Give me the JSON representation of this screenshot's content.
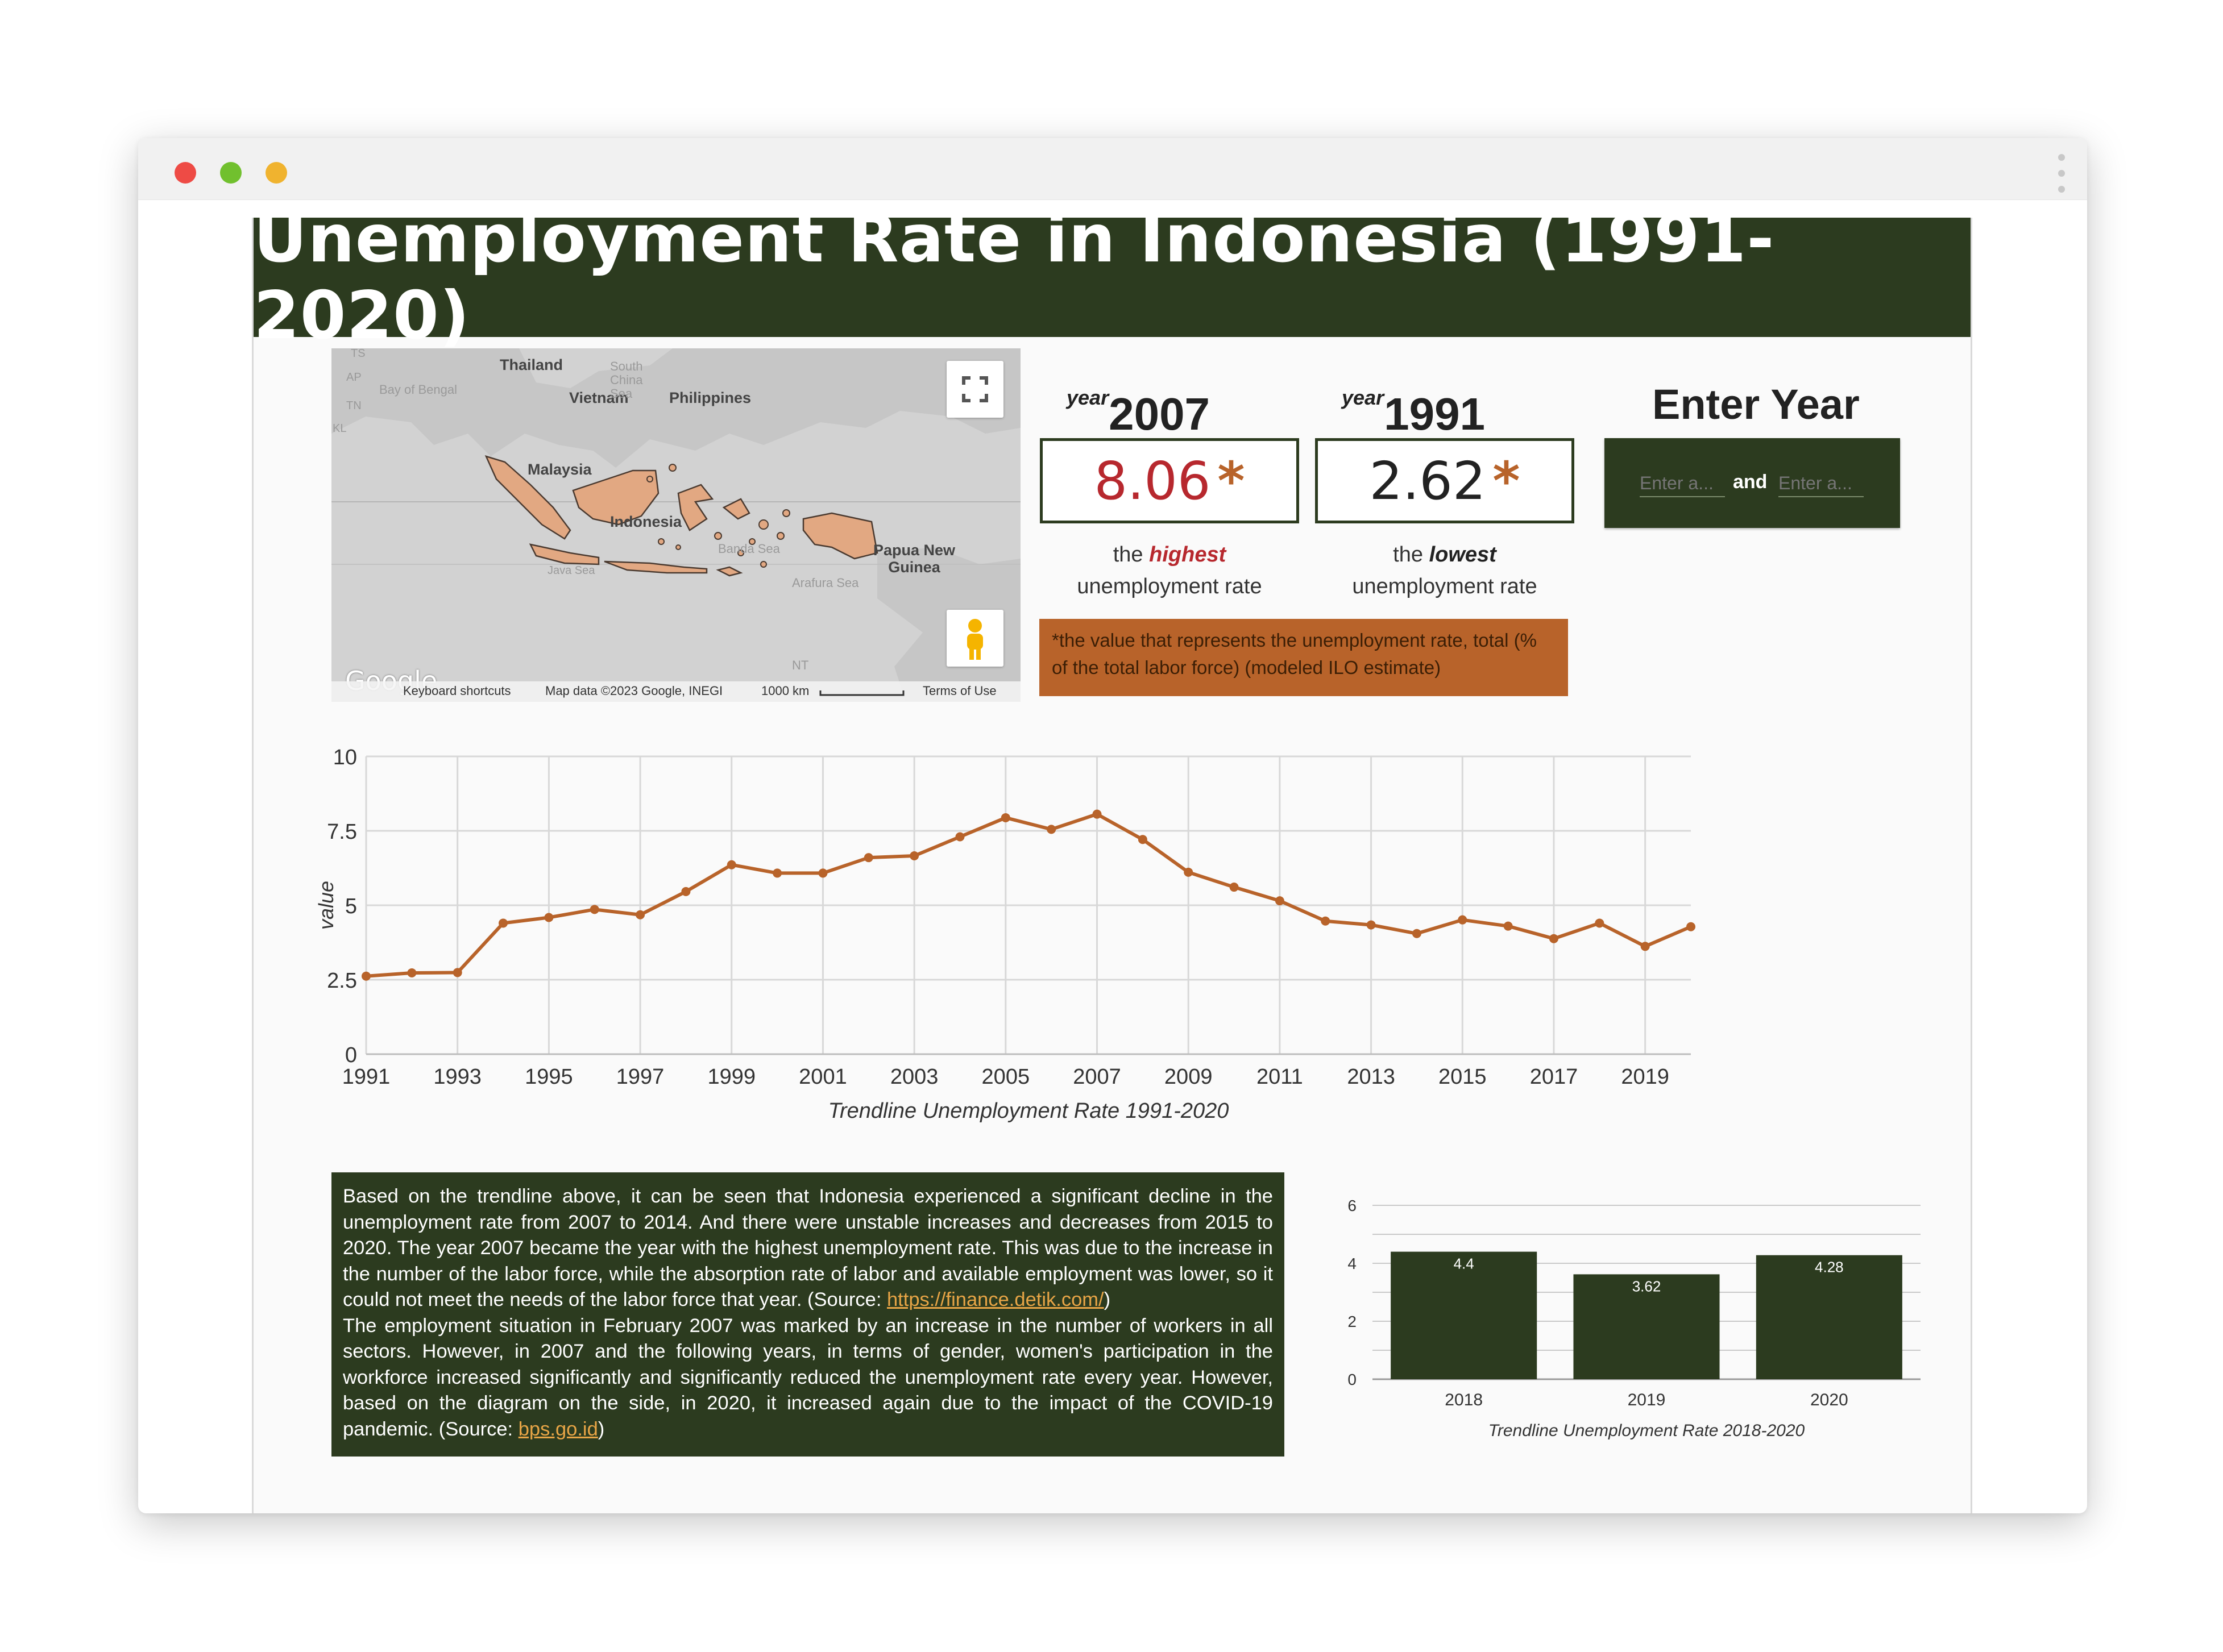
{
  "title": "Unemployment Rate in Indonesia (1991-2020)",
  "window": {
    "controls": [
      "close",
      "minimize",
      "maximize"
    ],
    "colors": {
      "close": "#ee4b45",
      "minimize": "#71c02e",
      "maximize": "#f0b32f"
    }
  },
  "colors": {
    "primary": "#2c3b1f",
    "accent": "#b8632a",
    "highlight_red": "#b7282e"
  },
  "map": {
    "labels": [
      "Thailand",
      "Vietnam",
      "Philippines",
      "Malaysia",
      "Indonesia",
      "Papua New Guinea",
      "Bay of Bengal",
      "South China Sea",
      "Banda Sea",
      "Arafura Sea",
      "NT",
      "TS",
      "AP",
      "TN",
      "KL",
      "Java Sea"
    ],
    "logo": "Google",
    "footer": {
      "shortcuts": "Keyboard shortcuts",
      "mapdata": "Map data ©2023 Google, INEGI",
      "scale": "1000 km",
      "terms": "Terms of Use"
    },
    "fullscreen_icon": "fullscreen-icon",
    "pegman_icon": "pegman-icon"
  },
  "scorecards": [
    {
      "year_word": "year",
      "year": "2007",
      "value": "8.06",
      "star": "*",
      "value_color": "#b7282e",
      "caption_pre": "the",
      "caption_em": "highest",
      "caption_em_color": "#b7282e",
      "caption_line2": "unemployment rate"
    },
    {
      "year_word": "year",
      "year": "1991",
      "value": "2.62",
      "star": "*",
      "value_color": "#222222",
      "caption_pre": "the",
      "caption_em": "lowest",
      "caption_em_color": "#222222",
      "caption_line2": "unemployment rate"
    }
  ],
  "note": "*the value that represents the unemployment rate, total (% of the total labor force) (modeled ILO estimate)",
  "year_filter": {
    "heading": "Enter Year",
    "start_placeholder": "Enter a...",
    "joiner": "and",
    "end_placeholder": "Enter a..."
  },
  "chart_data": [
    {
      "type": "line",
      "title": "Trendline Unemployment Rate 1991-2020",
      "xlabel": "Trendline Unemployment Rate 1991-2020",
      "ylabel": "value",
      "x": [
        1991,
        1992,
        1993,
        1994,
        1995,
        1996,
        1997,
        1998,
        1999,
        2000,
        2001,
        2002,
        2003,
        2004,
        2005,
        2006,
        2007,
        2008,
        2009,
        2010,
        2011,
        2012,
        2013,
        2014,
        2015,
        2016,
        2017,
        2018,
        2019,
        2020
      ],
      "series": [
        {
          "values": [
            2.62,
            2.73,
            2.74,
            4.4,
            4.59,
            4.86,
            4.68,
            5.46,
            6.36,
            6.08,
            6.08,
            6.6,
            6.66,
            7.3,
            7.94,
            7.55,
            8.06,
            7.21,
            6.11,
            5.61,
            5.15,
            4.47,
            4.34,
            4.05,
            4.51,
            4.3,
            3.88,
            4.4,
            3.62,
            4.28
          ],
          "color": "#b8632a"
        }
      ],
      "xticks": [
        "1991",
        "1993",
        "1995",
        "1997",
        "1999",
        "2001",
        "2003",
        "2005",
        "2007",
        "2009",
        "2011",
        "2013",
        "2015",
        "2017",
        "2019"
      ],
      "yticks": [
        "0",
        "2.5",
        "5",
        "7.5",
        "10"
      ],
      "ylim": [
        0,
        10
      ],
      "grid": true
    },
    {
      "type": "bar",
      "title": "Trendline Unemployment Rate 2018-2020",
      "xlabel": "Trendline Unemployment Rate 2018-2020",
      "categories": [
        "2018",
        "2019",
        "2020"
      ],
      "values": [
        4.4,
        3.62,
        4.28
      ],
      "value_labels": [
        "4.4",
        "3.62",
        "4.28"
      ],
      "yticks": [
        "0",
        "2",
        "4",
        "6"
      ],
      "ylim": [
        0,
        6
      ],
      "bar_color": "#2c3b1f",
      "grid": true
    }
  ],
  "narrative": {
    "p1": "Based on the trendline above, it can be seen that Indonesia experienced a significant decline in the unemployment rate from 2007 to 2014. And there were unstable increases and decreases from 2015 to 2020. The year 2007 became the year with the highest unemployment rate. This was due to the increase in the number of the labor force, while the absorption rate of labor and available employment was lower, so it could not meet the needs of the labor force that year. (Source: ",
    "link1": "https://finance.detik.com/",
    "p1_end": ")",
    "p2": "The employment situation in February 2007 was marked by an increase in the number of workers in all sectors. However, in 2007 and the following years, in terms of gender, women's participation in the workforce increased significantly and significantly reduced the unemployment rate every year. However, based on the diagram on the side, in 2020, it increased again due to the impact of the COVID-19 pandemic. (Source: ",
    "link2": "bps.go.id",
    "p2_end": ")"
  }
}
